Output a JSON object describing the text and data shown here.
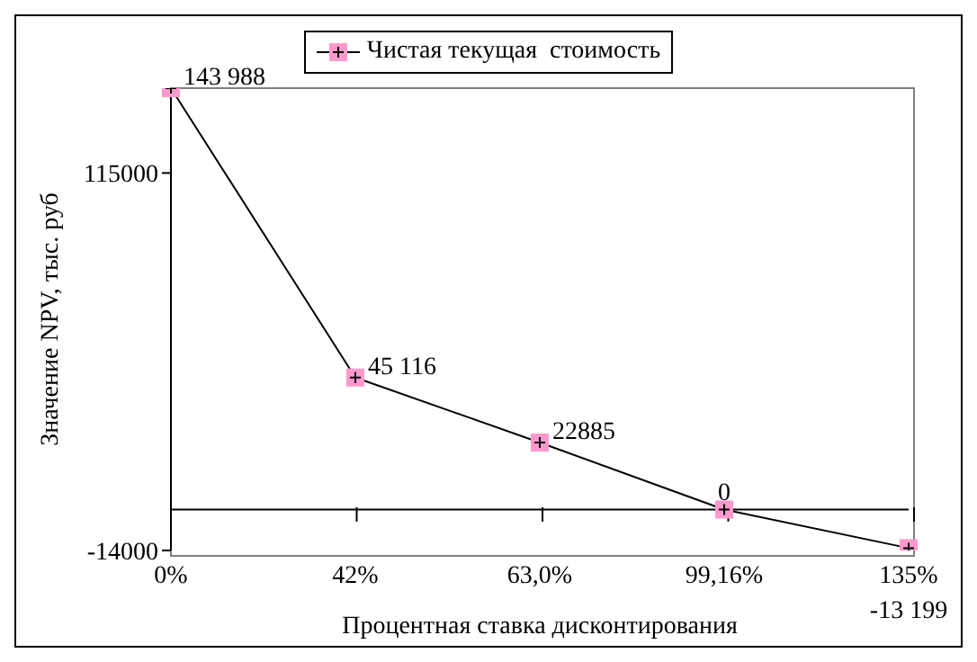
{
  "chart_data": {
    "type": "line",
    "xlabel": "Процентная ставка дисконтирования",
    "ylabel": "Значение NPV, тыс. руб",
    "categories": [
      "0%",
      "42%",
      "63,0%",
      "99,16%",
      "135%"
    ],
    "series": [
      {
        "name": "Чистая текущая  стоимость",
        "color": "#000000",
        "values": [
          143988,
          45116,
          22885,
          0,
          -13199
        ],
        "value_labels": [
          "143 988",
          "45 116",
          "22885",
          "0",
          "-13 199"
        ]
      }
    ],
    "ylim": [
      -14000,
      144000
    ],
    "yticks": [
      -14000,
      115000
    ],
    "ref_lines": [
      {
        "axis": "y",
        "value": 0,
        "color": "#000000"
      }
    ],
    "grid": false,
    "legend": "top",
    "marker": "cross",
    "line_style": "solid"
  }
}
